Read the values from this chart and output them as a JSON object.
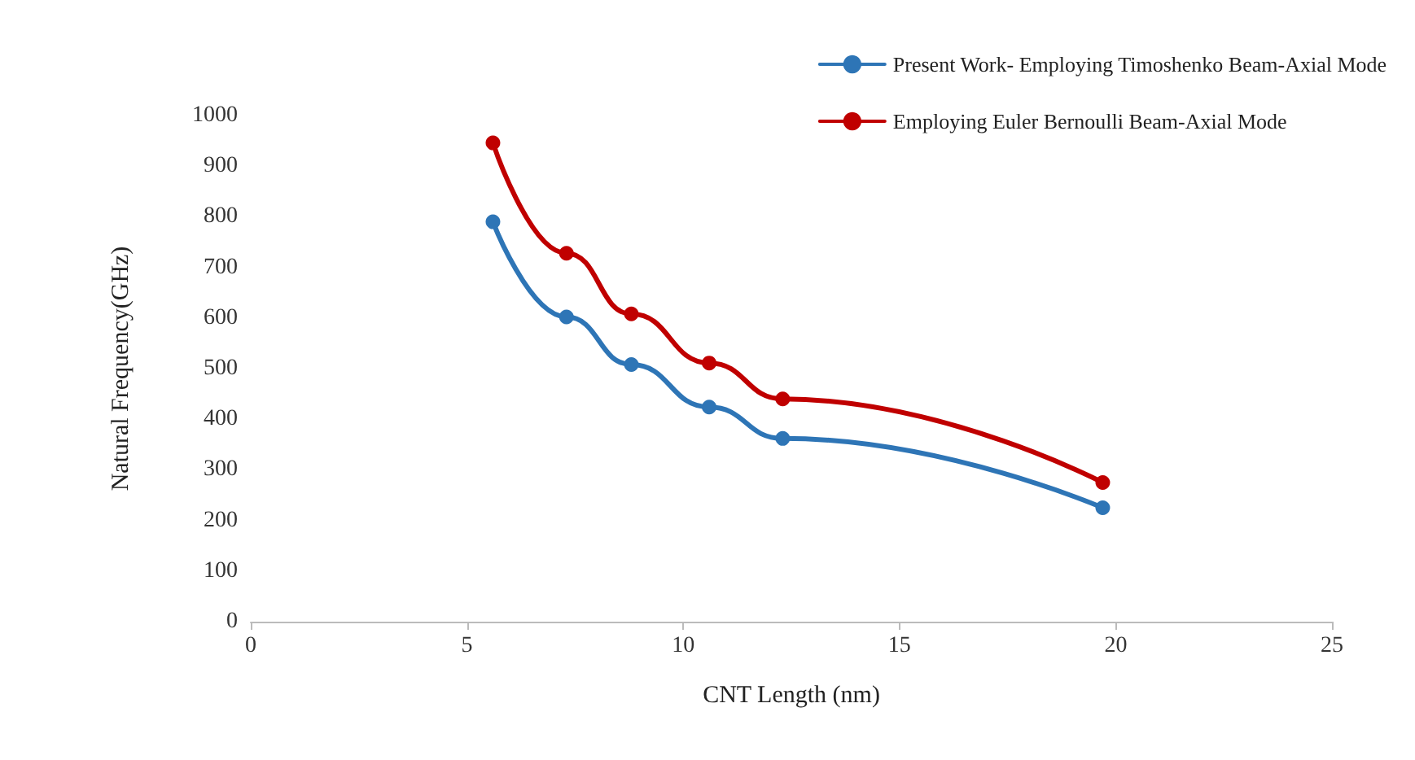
{
  "chart_data": {
    "type": "line",
    "xlabel": "CNT Length (nm)",
    "ylabel": "Natural Frequency(GHz)",
    "xlim": [
      0,
      25
    ],
    "xticks": [
      0,
      5,
      10,
      15,
      20,
      25
    ],
    "ylim": [
      0,
      1000
    ],
    "yticks": [
      0,
      100,
      200,
      300,
      400,
      500,
      600,
      700,
      800,
      900,
      1000
    ],
    "grid": false,
    "legend": "top right",
    "marker": "circle",
    "line_style": "solid",
    "series": [
      {
        "name": "Present Work- Employing Timoshenko Beam-Axial Mode",
        "color": "#2e75b6",
        "x": [
          5.6,
          7.3,
          8.8,
          10.6,
          12.3,
          19.7
        ],
        "values": [
          790,
          602,
          508,
          424,
          362,
          225
        ]
      },
      {
        "name": "Employing Euler Bernoulli Beam-Axial Mode",
        "color": "#c00000",
        "x": [
          5.6,
          7.3,
          8.8,
          10.6,
          12.3,
          19.7
        ],
        "values": [
          946,
          728,
          608,
          511,
          440,
          275
        ]
      }
    ]
  }
}
